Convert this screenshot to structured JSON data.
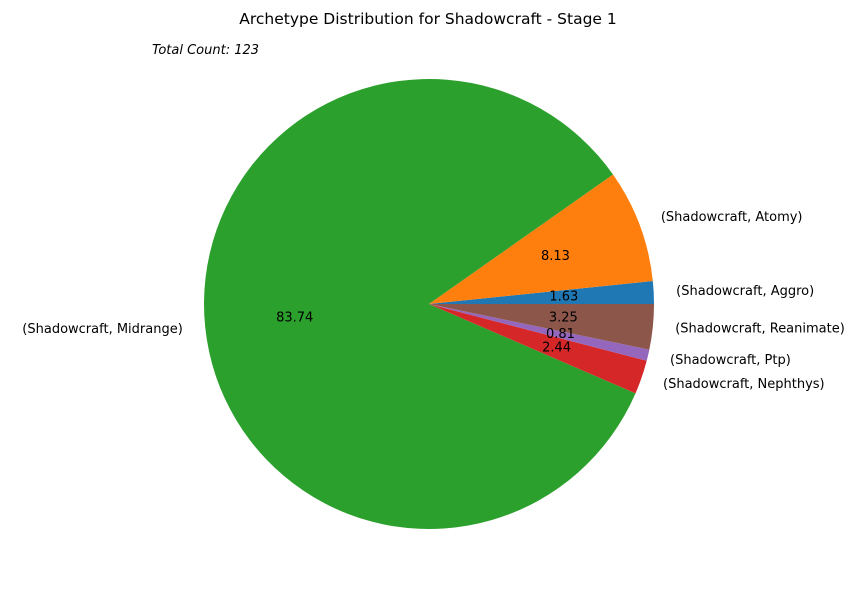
{
  "chart_data": {
    "type": "pie",
    "title": "Archetype Distribution for Shadowcraft - Stage 1",
    "annotation": "Total Count: 123",
    "slices": [
      {
        "label": "(Shadowcraft, Aggro)",
        "value": 1.63,
        "value_text": "1.63",
        "color": "#1f77b4"
      },
      {
        "label": "(Shadowcraft, Atomy)",
        "value": 8.13,
        "value_text": "8.13",
        "color": "#ff7f0e"
      },
      {
        "label": "(Shadowcraft, Midrange)",
        "value": 83.74,
        "value_text": "83.74",
        "color": "#2ca02c"
      },
      {
        "label": "(Shadowcraft, Nephthys)",
        "value": 2.44,
        "value_text": "2.44",
        "color": "#d62728"
      },
      {
        "label": "(Shadowcraft, Ptp)",
        "value": 0.81,
        "value_text": "0.81",
        "color": "#9467bd"
      },
      {
        "label": "(Shadowcraft, Reanimate)",
        "value": 3.25,
        "value_text": "3.25",
        "color": "#8c564b"
      }
    ],
    "start_angle_deg": 0,
    "direction": "counterclockwise"
  }
}
